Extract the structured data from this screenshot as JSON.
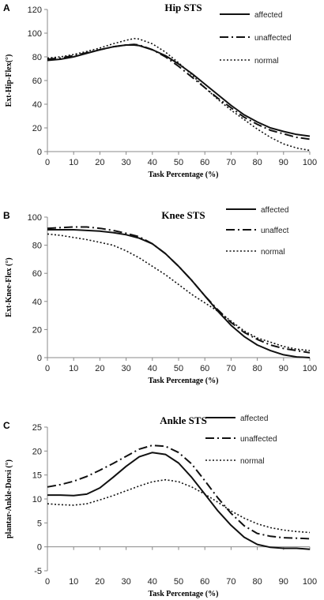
{
  "chart_data": [
    {
      "panel_letter": "A",
      "type": "line",
      "title": "Hip STS",
      "xlabel": "Task Percentage  (%)",
      "ylabel": "Ext-Hip-Flex(°)",
      "xlim": [
        0,
        100
      ],
      "ylim": [
        0,
        120
      ],
      "xticks": [
        0,
        10,
        20,
        30,
        40,
        50,
        60,
        70,
        80,
        90,
        100
      ],
      "yticks": [
        0,
        20,
        40,
        60,
        80,
        100,
        120
      ],
      "legend_position": "top-right",
      "grid": false,
      "x": [
        0,
        5,
        10,
        15,
        20,
        25,
        30,
        33,
        35,
        40,
        45,
        50,
        55,
        60,
        65,
        70,
        75,
        80,
        85,
        90,
        95,
        100
      ],
      "series": [
        {
          "name": "affected",
          "style": "solid",
          "values": [
            77,
            78,
            80,
            83,
            86,
            88.5,
            90,
            90,
            89.5,
            86,
            81,
            74,
            66,
            57,
            48,
            39,
            31,
            25,
            20,
            17,
            14.5,
            13
          ]
        },
        {
          "name": "unaffected",
          "style": "dashed",
          "values": [
            78,
            79,
            81,
            83.5,
            86,
            88.5,
            90,
            90.5,
            90,
            86,
            80,
            72,
            63,
            54,
            45,
            37,
            29,
            23,
            18,
            15,
            12,
            10.5
          ]
        },
        {
          "name": "normal",
          "style": "dotted",
          "values": [
            79,
            80,
            82,
            84.5,
            87.5,
            91,
            94,
            95.5,
            95,
            91,
            84,
            75,
            65,
            54,
            44,
            35,
            27,
            19,
            12,
            6.5,
            3,
            1
          ]
        }
      ]
    },
    {
      "panel_letter": "B",
      "type": "line",
      "title": "Knee STS",
      "xlabel": "Task Percentage  (%)",
      "ylabel": "Ext-Knee-Flex  (°)",
      "xlim": [
        0,
        100
      ],
      "ylim": [
        0,
        100
      ],
      "xticks": [
        0,
        10,
        20,
        30,
        40,
        50,
        60,
        70,
        80,
        90,
        100
      ],
      "yticks": [
        0,
        20,
        40,
        60,
        80,
        100
      ],
      "legend_position": "top-right",
      "grid": false,
      "x": [
        0,
        5,
        10,
        15,
        20,
        25,
        30,
        35,
        40,
        45,
        50,
        55,
        60,
        65,
        70,
        75,
        80,
        85,
        90,
        95,
        100
      ],
      "series": [
        {
          "name": "affected",
          "style": "solid",
          "values": [
            91,
            91,
            91,
            90.5,
            90,
            89,
            87.5,
            85,
            81,
            74,
            65,
            55,
            44,
            33,
            23,
            15,
            9,
            5,
            2,
            0.5,
            0
          ]
        },
        {
          "name": "unaffect",
          "style": "dashed",
          "values": [
            92,
            92.5,
            93,
            93,
            92,
            90.5,
            88.5,
            86,
            81,
            74,
            65,
            55,
            44,
            34,
            25,
            18,
            13,
            9,
            6.5,
            5,
            3.5
          ]
        },
        {
          "name": "normal",
          "style": "dotted",
          "values": [
            88,
            87,
            85.5,
            84,
            82,
            80,
            76,
            71,
            65,
            59,
            52,
            45,
            39,
            33,
            26,
            19,
            14,
            11,
            8,
            6,
            5
          ]
        }
      ]
    },
    {
      "panel_letter": "C",
      "type": "line",
      "title": "Ankle STS",
      "xlabel": "Task Percentage  (%)",
      "ylabel": "plantar-Ankle-Dorsi  (°)",
      "xlim": [
        0,
        100
      ],
      "ylim": [
        -5,
        25
      ],
      "xticks": [
        0,
        10,
        20,
        30,
        40,
        50,
        60,
        70,
        80,
        90,
        100
      ],
      "yticks": [
        -5,
        0,
        5,
        10,
        15,
        20,
        25
      ],
      "legend_position": "top-right",
      "grid": false,
      "x": [
        0,
        5,
        10,
        15,
        20,
        25,
        30,
        35,
        40,
        45,
        50,
        55,
        60,
        65,
        70,
        75,
        80,
        85,
        90,
        95,
        100
      ],
      "series": [
        {
          "name": "affected",
          "style": "solid",
          "values": [
            10.8,
            10.8,
            10.7,
            11,
            12.3,
            14.5,
            16.8,
            18.8,
            19.7,
            19.3,
            17.5,
            14.5,
            11,
            7.5,
            4.5,
            2,
            0.5,
            -0.1,
            -0.3,
            -0.3,
            -0.5
          ]
        },
        {
          "name": "unaffected",
          "style": "dashed",
          "values": [
            12.5,
            13,
            13.7,
            14.7,
            16,
            17.4,
            18.9,
            20.4,
            21.2,
            21,
            19.7,
            17.3,
            13.8,
            10.2,
            7,
            4.4,
            2.8,
            2.2,
            1.9,
            1.8,
            1.7
          ]
        },
        {
          "name": "normal",
          "style": "dotted",
          "values": [
            9,
            8.8,
            8.7,
            9,
            9.8,
            10.7,
            11.7,
            12.7,
            13.6,
            14,
            13.6,
            12.5,
            11,
            9.3,
            7.5,
            6,
            4.8,
            4,
            3.5,
            3.2,
            3
          ]
        }
      ]
    }
  ]
}
